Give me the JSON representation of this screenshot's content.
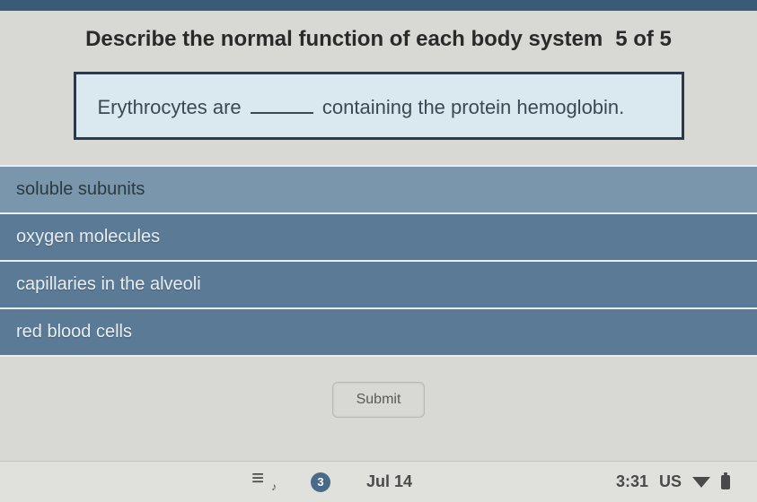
{
  "header": {
    "title": "Describe the normal function of each body system",
    "progress": "5 of 5"
  },
  "question": {
    "prefix": "Erythrocytes are",
    "suffix": "containing the protein hemoglobin."
  },
  "options": [
    {
      "label": "soluble subunits",
      "variant": "light"
    },
    {
      "label": "oxygen molecules",
      "variant": "dark"
    },
    {
      "label": "capillaries in the alveoli",
      "variant": "dark"
    },
    {
      "label": "red blood cells",
      "variant": "dark"
    }
  ],
  "submit": {
    "label": "Submit"
  },
  "status": {
    "badge": "3",
    "date": "Jul 14",
    "time": "3:31",
    "locale": "US"
  },
  "colors": {
    "option_dark": "#5a7a96",
    "option_light": "#7a96ac",
    "question_bg": "#dae8f0",
    "question_border": "#2a3a4a"
  }
}
